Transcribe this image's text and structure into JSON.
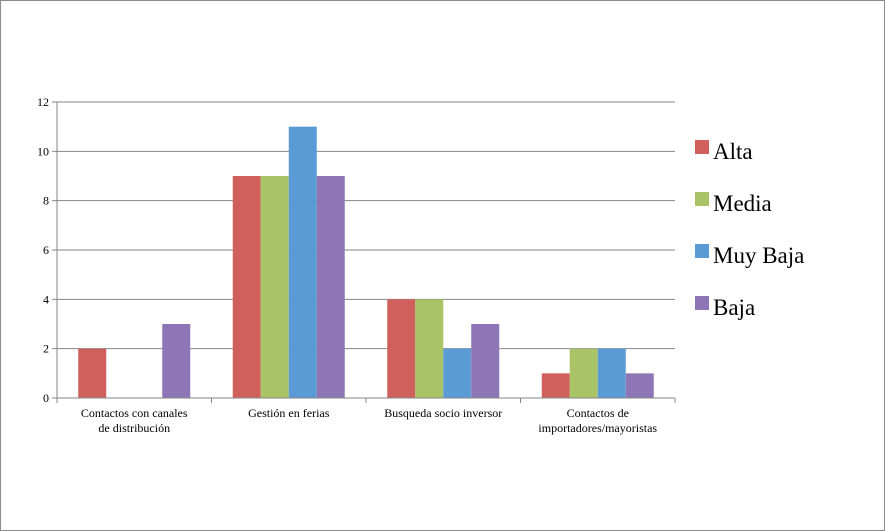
{
  "chart_data": {
    "type": "bar",
    "title": "",
    "xlabel": "",
    "ylabel": "",
    "ylim": [
      0,
      12
    ],
    "ytick_step": 2,
    "grid": true,
    "legend_position": "right",
    "categories": [
      [
        "Contactos con canales",
        "de distribución"
      ],
      [
        "Gestión en ferias"
      ],
      [
        "Busqueda socio inversor"
      ],
      [
        "Contactos de",
        "importadores/mayoristas"
      ]
    ],
    "series": [
      {
        "name": "Alta",
        "color": "#D0605C",
        "values": [
          2,
          9,
          4,
          1
        ]
      },
      {
        "name": "Media",
        "color": "#A8C466",
        "values": [
          0,
          9,
          4,
          2
        ]
      },
      {
        "name": "Muy Baja",
        "color": "#5B9BD5",
        "values": [
          0,
          11,
          2,
          2
        ]
      },
      {
        "name": "Baja",
        "color": "#8E76B6",
        "values": [
          3,
          9,
          3,
          1
        ]
      }
    ]
  }
}
